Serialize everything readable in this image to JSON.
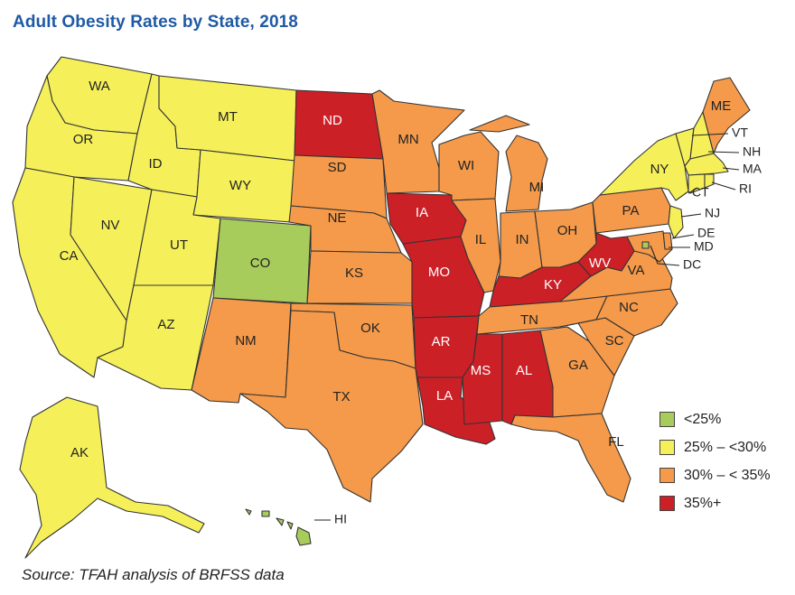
{
  "title": "Adult Obesity Rates by State, 2018",
  "source": "Source: TFAH analysis of BRFSS data",
  "colors": {
    "lt25": "#a8cc5c",
    "25to30": "#f5f05a",
    "30to35": "#f59a4a",
    "35plus": "#cc2027"
  },
  "legend": [
    {
      "key": "lt25",
      "label": "<25%"
    },
    {
      "key": "25to30",
      "label": "25% – <30%"
    },
    {
      "key": "30to35",
      "label": "30% – < 35%"
    },
    {
      "key": "35plus",
      "label": "35%+"
    }
  ],
  "states": {
    "WA": "25to30",
    "OR": "25to30",
    "CA": "25to30",
    "NV": "25to30",
    "ID": "25to30",
    "MT": "25to30",
    "WY": "25to30",
    "UT": "25to30",
    "AZ": "25to30",
    "CO": "lt25",
    "NM": "30to35",
    "ND": "35plus",
    "SD": "30to35",
    "NE": "30to35",
    "KS": "30to35",
    "OK": "30to35",
    "TX": "30to35",
    "MN": "30to35",
    "IA": "35plus",
    "MO": "35plus",
    "AR": "35plus",
    "LA": "35plus",
    "WI": "30to35",
    "IL": "30to35",
    "MI": "30to35",
    "IN": "30to35",
    "OH": "30to35",
    "KY": "35plus",
    "TN": "30to35",
    "MS": "35plus",
    "AL": "35plus",
    "GA": "30to35",
    "FL": "30to35",
    "SC": "30to35",
    "NC": "30to35",
    "VA": "30to35",
    "WV": "35plus",
    "PA": "30to35",
    "NY": "25to30",
    "VT": "25to30",
    "NH": "25to30",
    "ME": "30to35",
    "MA": "25to30",
    "RI": "25to30",
    "CT": "25to30",
    "NJ": "25to30",
    "DE": "30to35",
    "MD": "30to35",
    "DC": "lt25",
    "AK": "25to30",
    "HI": "lt25"
  },
  "callouts": [
    "VT",
    "NH",
    "MA",
    "RI",
    "CT",
    "NJ",
    "DE",
    "MD",
    "DC",
    "HI"
  ]
}
